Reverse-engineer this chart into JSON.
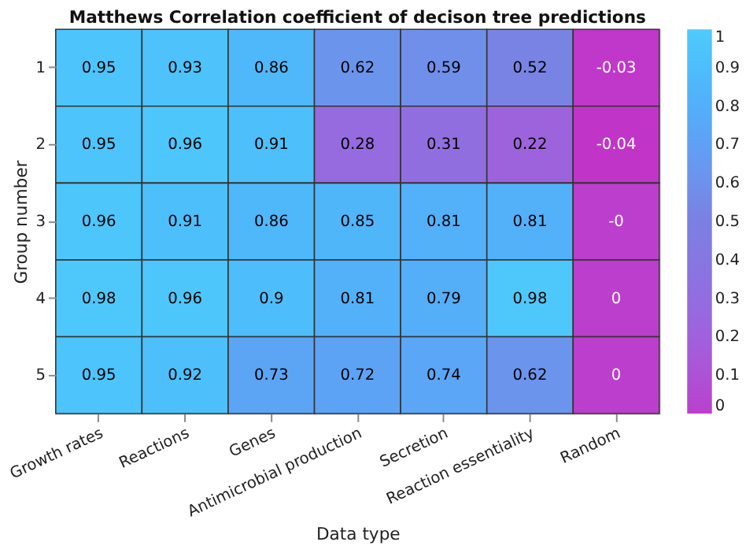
{
  "chart_data": {
    "type": "heatmap",
    "title": "Matthews Correlation coefficient of decison tree predictions",
    "xlabel": "Data type",
    "ylabel": "Group number",
    "categories": [
      "Growth rates",
      "Reactions",
      "Genes",
      "Antimicrobial production",
      "Secretion",
      "Reaction essentiality",
      "Random"
    ],
    "y_categories": [
      "1",
      "2",
      "3",
      "4",
      "5"
    ],
    "cells": [
      [
        0.95,
        0.93,
        0.86,
        0.62,
        0.59,
        0.52,
        -0.03
      ],
      [
        0.95,
        0.96,
        0.91,
        0.28,
        0.31,
        0.22,
        -0.04
      ],
      [
        0.96,
        0.91,
        0.86,
        0.85,
        0.81,
        0.81,
        0
      ],
      [
        0.98,
        0.96,
        0.9,
        0.81,
        0.79,
        0.98,
        0
      ],
      [
        0.95,
        0.92,
        0.73,
        0.72,
        0.74,
        0.62,
        0
      ]
    ],
    "cell_labels": [
      [
        "0.95",
        "0.93",
        "0.86",
        "0.62",
        "0.59",
        "0.52",
        "-0.03"
      ],
      [
        "0.95",
        "0.96",
        "0.91",
        "0.28",
        "0.31",
        "0.22",
        "-0.04"
      ],
      [
        "0.96",
        "0.91",
        "0.86",
        "0.85",
        "0.81",
        "0.81",
        "-0"
      ],
      [
        "0.98",
        "0.96",
        "0.9",
        "0.81",
        "0.79",
        "0.98",
        "0"
      ],
      [
        "0.95",
        "0.92",
        "0.73",
        "0.72",
        "0.74",
        "0.62",
        "0"
      ]
    ],
    "clim": [
      0,
      1
    ],
    "cticks": [
      0,
      0.1,
      0.2,
      0.3,
      0.4,
      0.5,
      0.6,
      0.7,
      0.8,
      0.9,
      1
    ]
  }
}
